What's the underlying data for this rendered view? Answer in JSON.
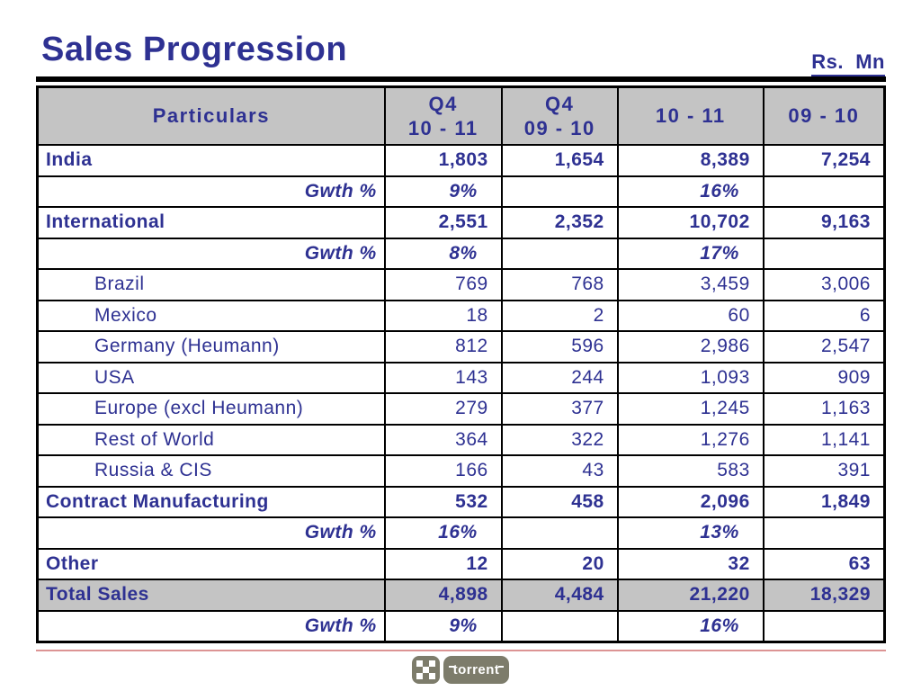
{
  "title": "Sales Progression",
  "unit_label": "Rs.  Mn",
  "colors": {
    "text": "#2e3192",
    "header_bg": "#c4c4c4",
    "border": "#000000",
    "footer_line": "#dc9494",
    "logo_olive": "#7d7c6b"
  },
  "table": {
    "headers": [
      "Particulars",
      "Q4\n10 - 11",
      "Q4\n09 - 10",
      "10 - 11",
      "09 - 10"
    ],
    "rows": [
      {
        "label": "India",
        "style": "section",
        "values": [
          "1,803",
          "1,654",
          "8,389",
          "7,254"
        ]
      },
      {
        "label": "Gwth %",
        "style": "growth",
        "values": [
          "9%",
          "",
          "16%",
          ""
        ]
      },
      {
        "label": "International",
        "style": "section",
        "values": [
          "2,551",
          "2,352",
          "10,702",
          "9,163"
        ]
      },
      {
        "label": "Gwth %",
        "style": "growth",
        "values": [
          "8%",
          "",
          "17%",
          ""
        ]
      },
      {
        "label": "Brazil",
        "style": "country",
        "values": [
          "769",
          "768",
          "3,459",
          "3,006"
        ]
      },
      {
        "label": "Mexico",
        "style": "country",
        "values": [
          "18",
          "2",
          "60",
          "6"
        ]
      },
      {
        "label": "Germany (Heumann)",
        "style": "country",
        "values": [
          "812",
          "596",
          "2,986",
          "2,547"
        ]
      },
      {
        "label": "USA",
        "style": "country",
        "values": [
          "143",
          "244",
          "1,093",
          "909"
        ]
      },
      {
        "label": "Europe (excl Heumann)",
        "style": "country",
        "values": [
          "279",
          "377",
          "1,245",
          "1,163"
        ]
      },
      {
        "label": "Rest of World",
        "style": "country",
        "values": [
          "364",
          "322",
          "1,276",
          "1,141"
        ]
      },
      {
        "label": "Russia & CIS",
        "style": "country",
        "values": [
          "166",
          "43",
          "583",
          "391"
        ]
      },
      {
        "label": "Contract Manufacturing",
        "style": "section",
        "values": [
          "532",
          "458",
          "2,096",
          "1,849"
        ]
      },
      {
        "label": "Gwth %",
        "style": "growth",
        "values": [
          "16%",
          "",
          "13%",
          ""
        ]
      },
      {
        "label": "Other",
        "style": "section",
        "values": [
          "12",
          "20",
          "32",
          "63"
        ]
      },
      {
        "label": "Total Sales",
        "style": "total",
        "values": [
          "4,898",
          "4,484",
          "21,220",
          "18,329"
        ]
      },
      {
        "label": "Gwth %",
        "style": "growth",
        "values": [
          "9%",
          "",
          "16%",
          ""
        ]
      }
    ]
  },
  "logo": {
    "text": "torrent"
  }
}
